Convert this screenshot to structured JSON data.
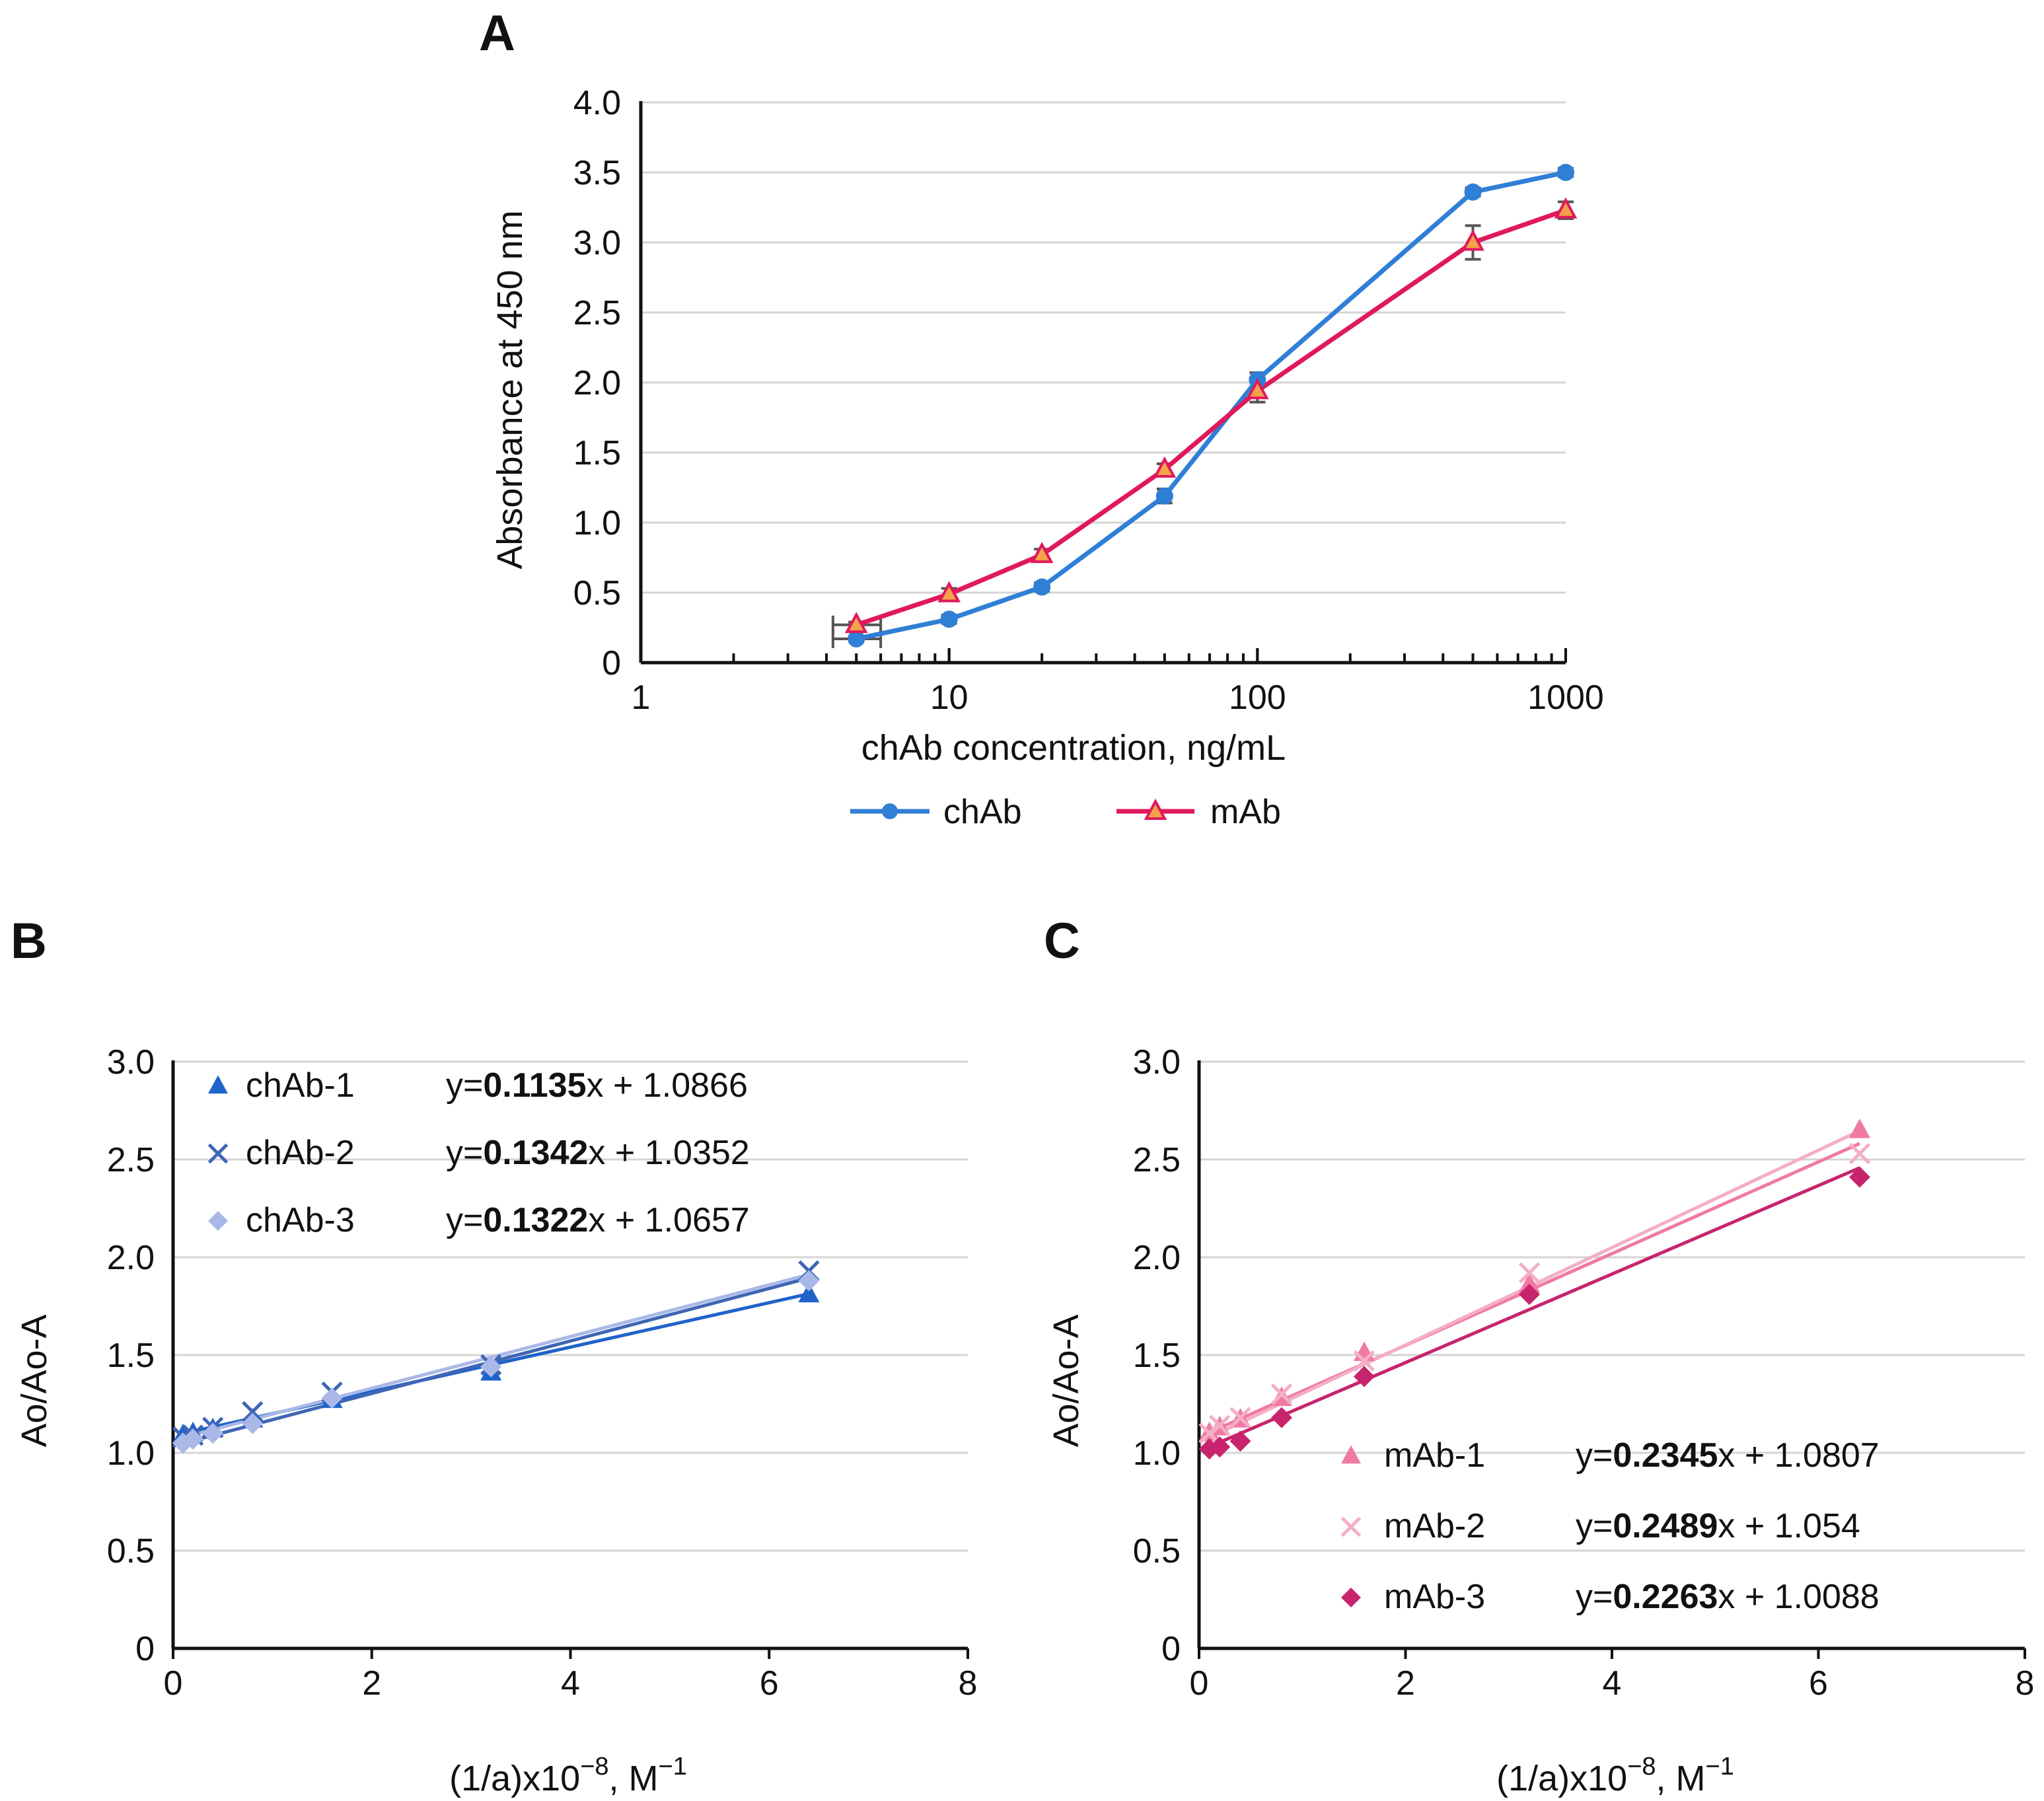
{
  "chart_data": [
    {
      "panel": "A",
      "type": "line",
      "xscale": "log",
      "xlabel": "chAb concentration, ng/mL",
      "ylabel": "Absorbance at 450 nm",
      "xlim": [
        1,
        1000
      ],
      "ylim": [
        0,
        4.0
      ],
      "xticks": [
        1,
        10,
        100,
        1000
      ],
      "xtick_labels": [
        "1",
        "10",
        "100",
        "1000"
      ],
      "yticks": [
        0,
        0.5,
        1.0,
        1.5,
        2.0,
        2.5,
        3.0,
        3.5,
        4.0
      ],
      "ytick_labels": [
        "0",
        "0.5",
        "1.0",
        "1.5",
        "2.0",
        "2.5",
        "3.0",
        "3.5",
        "4.0"
      ],
      "grid": true,
      "legend_position": "bottom",
      "series": [
        {
          "name": "chAb",
          "color": "#2f7fd6",
          "marker": "circle",
          "x": [
            5,
            10,
            20,
            50,
            100,
            500,
            1000
          ],
          "y": [
            0.17,
            0.31,
            0.54,
            1.19,
            2.02,
            3.36,
            3.5
          ],
          "yerr": [
            0.02,
            0.03,
            0.03,
            0.05,
            0.05,
            0.03,
            0.03
          ],
          "xerr_low": [
            0.8,
            0,
            0,
            0,
            0,
            0,
            0
          ],
          "xerr_high": [
            1.0,
            0,
            0,
            0,
            0,
            0,
            0
          ]
        },
        {
          "name": "mAb",
          "color": "#e0195d",
          "marker": "triangle",
          "x": [
            5,
            10,
            20,
            50,
            100,
            500,
            1000
          ],
          "y": [
            0.27,
            0.49,
            0.77,
            1.38,
            1.94,
            3.0,
            3.23
          ],
          "yerr": [
            0.02,
            0.04,
            0.04,
            0.04,
            0.08,
            0.12,
            0.06
          ],
          "xerr_low": [
            0.8,
            0,
            0,
            0,
            0,
            0,
            0
          ],
          "xerr_high": [
            1.0,
            0,
            0,
            0,
            0,
            0,
            0
          ]
        }
      ]
    },
    {
      "panel": "B",
      "type": "scatter",
      "xlabel_main": "(1/a)x10",
      "xlabel_exp": "−8",
      "xlabel_unit": ", M",
      "xlabel_unit_exp": "−1",
      "ylabel": "Ao/Ao-A",
      "xlim": [
        0,
        8
      ],
      "ylim": [
        0,
        3.0
      ],
      "xticks": [
        0,
        2,
        4,
        6,
        8
      ],
      "xtick_labels": [
        "0",
        "2",
        "4",
        "6",
        "8"
      ],
      "yticks": [
        0,
        0.5,
        1.0,
        1.5,
        2.0,
        2.5,
        3.0
      ],
      "ytick_labels": [
        "0",
        "0.5",
        "1.0",
        "1.5",
        "2.0",
        "2.5",
        "3.0"
      ],
      "grid": true,
      "legend_position": "top-left",
      "series": [
        {
          "name": "chAb-1",
          "color": "#1f63c9",
          "marker": "triangle",
          "x": [
            0.1,
            0.2,
            0.4,
            0.8,
            1.6,
            3.2,
            6.4
          ],
          "y": [
            1.09,
            1.1,
            1.12,
            1.17,
            1.27,
            1.41,
            1.81
          ],
          "eq_prefix": "y=",
          "eq_slope": "0.1135",
          "eq_suffix": "x + 1.0866",
          "slope": 0.1135,
          "intercept": 1.0866
        },
        {
          "name": "chAb-2",
          "color": "#3f66b5",
          "marker": "x",
          "x": [
            0.1,
            0.2,
            0.4,
            0.8,
            1.6,
            3.2,
            6.4
          ],
          "y": [
            1.08,
            1.09,
            1.13,
            1.21,
            1.31,
            1.45,
            1.93
          ],
          "eq_prefix": "y=",
          "eq_slope": "0.1342",
          "eq_suffix": "x + 1.0352",
          "slope": 0.1342,
          "intercept": 1.0352
        },
        {
          "name": "chAb-3",
          "color": "#aab8e8",
          "marker": "diamond",
          "x": [
            0.1,
            0.2,
            0.4,
            0.8,
            1.6,
            3.2,
            6.4
          ],
          "y": [
            1.05,
            1.07,
            1.1,
            1.15,
            1.28,
            1.44,
            1.88
          ],
          "eq_prefix": "y=",
          "eq_slope": "0.1322",
          "eq_suffix": "x + 1.0657",
          "slope": 0.1322,
          "intercept": 1.0657
        }
      ]
    },
    {
      "panel": "C",
      "type": "scatter",
      "xlabel_main": "(1/a)x10",
      "xlabel_exp": "−8",
      "xlabel_unit": ", M",
      "xlabel_unit_exp": "−1",
      "ylabel": "Ao/Ao-A",
      "xlim": [
        0,
        8
      ],
      "ylim": [
        0,
        3.0
      ],
      "xticks": [
        0,
        2,
        4,
        6,
        8
      ],
      "xtick_labels": [
        "0",
        "2",
        "4",
        "6",
        "8"
      ],
      "yticks": [
        0,
        0.5,
        1.0,
        1.5,
        2.0,
        2.5,
        3.0
      ],
      "ytick_labels": [
        "0",
        "0.5",
        "1.0",
        "1.5",
        "2.0",
        "2.5",
        "3.0"
      ],
      "grid": true,
      "legend_position": "bottom-right",
      "series": [
        {
          "name": "mAb-1",
          "color": "#f07aa3",
          "marker": "triangle",
          "x": [
            0.1,
            0.2,
            0.4,
            0.8,
            1.6,
            3.2,
            6.4
          ],
          "y": [
            1.1,
            1.13,
            1.17,
            1.28,
            1.51,
            1.86,
            2.65
          ],
          "eq_prefix": "y=",
          "eq_slope": "0.2345",
          "eq_suffix": "x + 1.0807",
          "slope": 0.2345,
          "intercept": 1.0807
        },
        {
          "name": "mAb-2",
          "color": "#f4aec6",
          "marker": "x",
          "x": [
            0.1,
            0.2,
            0.4,
            0.8,
            1.6,
            3.2,
            6.4
          ],
          "y": [
            1.1,
            1.14,
            1.18,
            1.3,
            1.47,
            1.92,
            2.53
          ],
          "eq_prefix": "y=",
          "eq_slope": "0.2489",
          "eq_suffix": "x + 1.054",
          "slope": 0.2489,
          "intercept": 1.054
        },
        {
          "name": "mAb-3",
          "color": "#c8246e",
          "marker": "diamond",
          "x": [
            0.1,
            0.2,
            0.4,
            0.8,
            1.6,
            3.2,
            6.4
          ],
          "y": [
            1.02,
            1.03,
            1.06,
            1.18,
            1.39,
            1.81,
            2.41
          ],
          "eq_prefix": "y=",
          "eq_slope": "0.2263",
          "eq_suffix": "x + 1.0088",
          "slope": 0.2263,
          "intercept": 1.0088
        }
      ]
    }
  ]
}
